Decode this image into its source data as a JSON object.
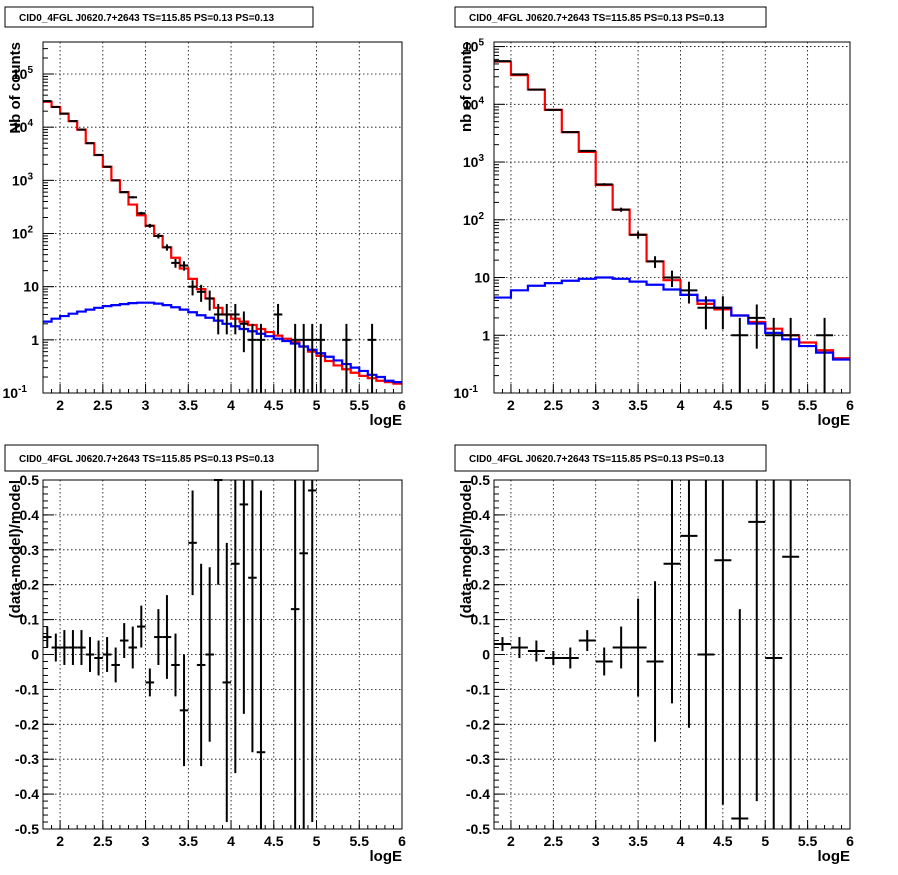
{
  "chart_data": [
    {
      "type": "line",
      "log_y": true,
      "title": "CID0_4FGL J0620.7+2643 TS=115.85 PS=0.13 PS=0.13",
      "xlabel": "logE",
      "ylabel": "Nb of counts",
      "xlim": [
        1.8,
        6.0
      ],
      "ylim": [
        0.1,
        400000
      ],
      "grid": true,
      "x_ticks": [
        "2",
        "2.5",
        "3",
        "3.5",
        "4",
        "4.5",
        "5",
        "5.5",
        "6"
      ],
      "y_ticks": [
        {
          "label": "10",
          "sup": "-1"
        },
        {
          "label": "1",
          "sup": ""
        },
        {
          "label": "10",
          "sup": ""
        },
        {
          "label": "10",
          "sup": "2"
        },
        {
          "label": "10",
          "sup": "3"
        },
        {
          "label": "10",
          "sup": "4"
        },
        {
          "label": "10",
          "sup": "5"
        }
      ],
      "bin_width": 0.1,
      "series": [
        {
          "color": "#ff0000",
          "kind": "hist",
          "x": [
            1.85,
            1.95,
            2.05,
            2.15,
            2.25,
            2.35,
            2.45,
            2.55,
            2.65,
            2.75,
            2.85,
            2.95,
            3.05,
            3.15,
            3.25,
            3.35,
            3.45,
            3.55,
            3.65,
            3.75,
            3.85,
            3.95,
            4.05,
            4.15,
            4.25,
            4.35,
            4.45,
            4.55,
            4.65,
            4.75,
            4.85,
            4.95,
            5.05,
            5.15,
            5.25,
            5.35,
            5.45,
            5.55,
            5.65,
            5.75,
            5.85,
            5.95
          ],
          "y": [
            30000,
            24000,
            18000,
            13000,
            9000,
            5000,
            3000,
            1800,
            1000,
            600,
            350,
            220,
            140,
            90,
            55,
            35,
            22,
            14,
            9,
            6,
            4,
            3.0,
            2.5,
            2.2,
            1.9,
            1.6,
            1.4,
            1.2,
            1.05,
            0.9,
            0.75,
            0.6,
            0.5,
            0.4,
            0.33,
            0.28,
            0.24,
            0.21,
            0.19,
            0.17,
            0.16,
            0.15
          ]
        },
        {
          "color": "#0000ff",
          "kind": "hist",
          "x": [
            1.85,
            1.95,
            2.05,
            2.15,
            2.25,
            2.35,
            2.45,
            2.55,
            2.65,
            2.75,
            2.85,
            2.95,
            3.05,
            3.15,
            3.25,
            3.35,
            3.45,
            3.55,
            3.65,
            3.75,
            3.85,
            3.95,
            4.05,
            4.15,
            4.25,
            4.35,
            4.45,
            4.55,
            4.65,
            4.75,
            4.85,
            4.95,
            5.05,
            5.15,
            5.25,
            5.35,
            5.45,
            5.55,
            5.65,
            5.75,
            5.85,
            5.95
          ],
          "y": [
            2.2,
            2.5,
            2.8,
            3.1,
            3.4,
            3.7,
            4.0,
            4.3,
            4.5,
            4.7,
            4.9,
            5.0,
            5.0,
            4.8,
            4.5,
            4.1,
            3.7,
            3.3,
            2.9,
            2.6,
            2.3,
            2.0,
            1.8,
            1.6,
            1.45,
            1.3,
            1.17,
            1.05,
            0.95,
            0.85,
            0.75,
            0.65,
            0.56,
            0.48,
            0.41,
            0.35,
            0.3,
            0.26,
            0.22,
            0.2,
            0.17,
            0.16
          ]
        },
        {
          "color": "#000000",
          "kind": "points",
          "x": [
            1.85,
            1.95,
            2.05,
            2.15,
            2.25,
            2.35,
            2.45,
            2.55,
            2.65,
            2.75,
            2.85,
            2.95,
            3.05,
            3.15,
            3.25,
            3.35,
            3.45,
            3.55,
            3.65,
            3.75,
            3.85,
            3.95,
            4.05,
            4.15,
            4.25,
            4.35,
            4.55,
            4.75,
            4.85,
            4.95,
            5.05,
            5.35,
            5.65
          ],
          "y": [
            31000,
            24000,
            18000,
            13000,
            9000,
            5000,
            3000,
            1800,
            1000,
            600,
            480,
            240,
            140,
            90,
            55,
            28,
            25,
            10,
            8,
            6,
            3,
            3,
            3,
            2,
            1,
            1,
            3,
            1,
            1,
            1,
            1,
            1,
            1
          ]
        }
      ]
    },
    {
      "type": "line",
      "log_y": true,
      "title": "CID0_4FGL J0620.7+2643 TS=115.85 PS=0.13 PS=0.13",
      "xlabel": "logE",
      "ylabel": "nb of counts",
      "xlim": [
        1.8,
        6.0
      ],
      "ylim": [
        0.1,
        120000
      ],
      "grid": true,
      "x_ticks": [
        "2",
        "2.5",
        "3",
        "3.5",
        "4",
        "4.5",
        "5",
        "5.5",
        "6"
      ],
      "y_ticks": [
        {
          "label": "10",
          "sup": "-1"
        },
        {
          "label": "1",
          "sup": ""
        },
        {
          "label": "10",
          "sup": ""
        },
        {
          "label": "10",
          "sup": "2"
        },
        {
          "label": "10",
          "sup": "3"
        },
        {
          "label": "10",
          "sup": "4"
        },
        {
          "label": "10",
          "sup": "5"
        }
      ],
      "bin_width": 0.2,
      "series": [
        {
          "color": "#ff0000",
          "kind": "hist",
          "x": [
            1.9,
            2.1,
            2.3,
            2.5,
            2.7,
            2.9,
            3.1,
            3.3,
            3.5,
            3.7,
            3.9,
            4.1,
            4.3,
            4.5,
            4.7,
            4.9,
            5.1,
            5.3,
            5.5,
            5.7,
            5.9
          ],
          "y": [
            55000,
            32000,
            18000,
            8000,
            3300,
            1500,
            400,
            150,
            55,
            19,
            9,
            5,
            3.5,
            2.8,
            2.2,
            1.7,
            1.3,
            1.0,
            0.75,
            0.55,
            0.4
          ]
        },
        {
          "color": "#0000ff",
          "kind": "hist",
          "x": [
            1.9,
            2.1,
            2.3,
            2.5,
            2.7,
            2.9,
            3.1,
            3.3,
            3.5,
            3.7,
            3.9,
            4.1,
            4.3,
            4.5,
            4.7,
            4.9,
            5.1,
            5.3,
            5.5,
            5.7,
            5.9
          ],
          "y": [
            4.5,
            6.0,
            7.2,
            8.0,
            8.8,
            9.5,
            10.0,
            9.5,
            8.5,
            7.5,
            6.2,
            5.0,
            4.0,
            3.0,
            2.2,
            1.6,
            1.1,
            0.85,
            0.65,
            0.5,
            0.38
          ]
        },
        {
          "color": "#000000",
          "kind": "points",
          "x": [
            1.9,
            2.1,
            2.3,
            2.5,
            2.7,
            2.9,
            3.1,
            3.3,
            3.5,
            3.7,
            3.9,
            4.1,
            4.3,
            4.5,
            4.7,
            4.9,
            5.1,
            5.3,
            5.7
          ],
          "y": [
            56000,
            33000,
            18000,
            8000,
            3300,
            1560,
            410,
            150,
            55,
            19,
            10,
            6,
            3,
            3,
            1,
            2,
            1,
            1,
            1
          ]
        }
      ]
    },
    {
      "type": "scatter",
      "title": "CID0_4FGL J0620.7+2643 TS=115.85 PS=0.13 PS=0.13",
      "xlabel": "logE",
      "ylabel": "(data-model)/model",
      "xlim": [
        1.8,
        6.0
      ],
      "ylim": [
        -0.5,
        0.5
      ],
      "grid": true,
      "x_ticks": [
        "2",
        "2.5",
        "3",
        "3.5",
        "4",
        "4.5",
        "5",
        "5.5",
        "6"
      ],
      "y_ticks": [
        "-0.5",
        "-0.4",
        "-0.3",
        "-0.2",
        "-0.1",
        "0",
        "0.1",
        "0.2",
        "0.3",
        "0.4",
        "0.5"
      ],
      "bin_width": 0.1,
      "series": [
        {
          "color": "#000000",
          "x": [
            1.85,
            1.95,
            2.05,
            2.15,
            2.25,
            2.35,
            2.45,
            2.55,
            2.65,
            2.75,
            2.85,
            2.95,
            3.05,
            3.15,
            3.25,
            3.35,
            3.45,
            3.55,
            3.65,
            3.75,
            3.85,
            3.95,
            4.05,
            4.15,
            4.25,
            4.35,
            4.75,
            4.85,
            4.95
          ],
          "y": [
            0.05,
            0.02,
            0.02,
            0.02,
            0.02,
            0.0,
            -0.01,
            0.0,
            -0.03,
            0.04,
            0.02,
            0.08,
            -0.08,
            0.05,
            0.05,
            -0.03,
            -0.16,
            0.32,
            -0.03,
            0.0,
            0.5,
            -0.08,
            0.26,
            0.43,
            0.22,
            -0.28,
            0.13,
            0.29,
            0.47
          ],
          "err": [
            0.03,
            0.04,
            0.05,
            0.05,
            0.05,
            0.05,
            0.05,
            0.05,
            0.05,
            0.05,
            0.06,
            0.06,
            0.04,
            0.08,
            0.12,
            0.09,
            0.16,
            0.15,
            0.29,
            0.25,
            0.3,
            0.4,
            0.6,
            0.6,
            0.5,
            0.75,
            0.95,
            0.95,
            0.95
          ]
        }
      ]
    },
    {
      "type": "scatter",
      "title": "CID0_4FGL J0620.7+2643 TS=115.85 PS=0.13 PS=0.13",
      "xlabel": "logE",
      "ylabel": "(data-model)/model",
      "xlim": [
        1.8,
        6.0
      ],
      "ylim": [
        -0.5,
        0.5
      ],
      "grid": true,
      "x_ticks": [
        "2",
        "2.5",
        "3",
        "3.5",
        "4",
        "4.5",
        "5",
        "5.5",
        "6"
      ],
      "y_ticks": [
        "-0.5",
        "-0.4",
        "-0.3",
        "-0.2",
        "-0.1",
        "0",
        "0.1",
        "0.2",
        "0.3",
        "0.4",
        "0.5"
      ],
      "bin_width": 0.2,
      "series": [
        {
          "color": "#000000",
          "x": [
            1.9,
            2.1,
            2.3,
            2.5,
            2.7,
            2.9,
            3.1,
            3.3,
            3.5,
            3.7,
            3.9,
            4.1,
            4.3,
            4.5,
            4.7,
            4.9,
            5.1,
            5.3
          ],
          "y": [
            0.03,
            0.02,
            0.01,
            -0.01,
            -0.01,
            0.04,
            -0.02,
            0.02,
            0.02,
            -0.02,
            0.26,
            0.34,
            0.0,
            0.27,
            -0.47,
            0.38,
            -0.01,
            0.28
          ],
          "err": [
            0.02,
            0.03,
            0.03,
            0.02,
            0.03,
            0.03,
            0.04,
            0.06,
            0.14,
            0.23,
            0.4,
            0.55,
            0.6,
            0.7,
            0.6,
            0.8,
            0.7,
            0.8
          ]
        }
      ]
    }
  ]
}
